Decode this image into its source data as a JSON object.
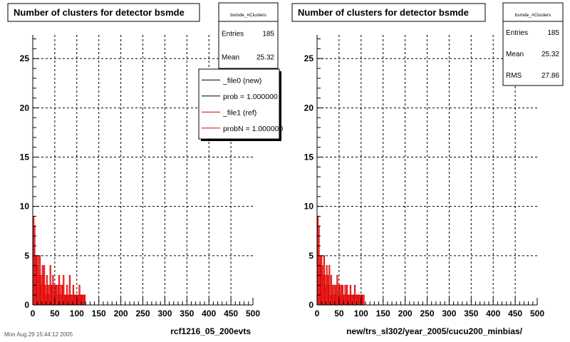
{
  "chart_data": [
    {
      "type": "bar",
      "title": "Number of clusters for detector bsmde",
      "xlabel": "rcf1216_05_200evts",
      "ylabel": "",
      "xlim": [
        0,
        500
      ],
      "ylim": [
        0,
        27.4
      ],
      "xticks": [
        "0",
        "50",
        "100",
        "150",
        "200",
        "250",
        "300",
        "350",
        "400",
        "450",
        "500"
      ],
      "yticks": [
        "0",
        "5",
        "10",
        "15",
        "20",
        "25"
      ],
      "grid": true,
      "stats": {
        "name": "bsmde_#Clusters",
        "rows": [
          {
            "label": "Entries",
            "value": "185"
          },
          {
            "label": "Mean",
            "value": "25.32"
          }
        ]
      },
      "legend": {
        "position": "top-right",
        "entries": [
          {
            "label": "_file0 (new)",
            "color": "#000000"
          },
          {
            "label": "prob = 1.000000",
            "color": "#000000"
          },
          {
            "label": "_file1 (ref)",
            "color": "#e00000"
          },
          {
            "label": "probN = 1.000000",
            "color": "#e00000"
          }
        ]
      },
      "series": [
        {
          "color": "#e00000",
          "bin_width": 2,
          "x": [
            2,
            4,
            6,
            8,
            10,
            12,
            14,
            16,
            18,
            20,
            22,
            24,
            26,
            28,
            30,
            32,
            34,
            36,
            38,
            40,
            42,
            44,
            46,
            48,
            50,
            52,
            54,
            56,
            58,
            60,
            62,
            64,
            66,
            68,
            70,
            72,
            74,
            76,
            78,
            80,
            82,
            84,
            86,
            88,
            90,
            92,
            94,
            96,
            98,
            100,
            102,
            104,
            106,
            108,
            110,
            112,
            114,
            116,
            118
          ],
          "values": [
            9,
            8,
            5,
            5,
            4,
            5,
            3,
            5,
            3,
            2,
            4,
            3,
            4,
            2,
            1,
            3,
            2,
            1,
            2,
            4,
            2,
            2,
            3,
            2,
            1,
            2,
            2,
            1,
            2,
            3,
            1,
            2,
            1,
            2,
            3,
            1,
            1,
            1,
            2,
            1,
            1,
            3,
            1,
            1,
            1,
            2,
            1,
            1,
            1,
            1,
            1,
            1,
            2,
            1,
            1,
            1,
            1,
            1,
            1
          ]
        }
      ]
    },
    {
      "type": "bar",
      "title": "Number of clusters for detector bsmde",
      "xlabel": "new/trs_sl302/year_2005/cucu200_minbias/",
      "ylabel": "",
      "xlim": [
        0,
        500
      ],
      "ylim": [
        0,
        27.4
      ],
      "xticks": [
        "0",
        "50",
        "100",
        "150",
        "200",
        "250",
        "300",
        "350",
        "400",
        "450",
        "500"
      ],
      "yticks": [
        "0",
        "5",
        "10",
        "15",
        "20",
        "25"
      ],
      "grid": true,
      "stats": {
        "name": "bsmde_#Clusters",
        "rows": [
          {
            "label": "Entries",
            "value": "185"
          },
          {
            "label": "Mean",
            "value": "25.32"
          },
          {
            "label": "RMS",
            "value": "27.86"
          }
        ]
      },
      "series": [
        {
          "color": "#e00000",
          "bin_width": 2,
          "x": [
            2,
            4,
            6,
            8,
            10,
            12,
            14,
            16,
            18,
            20,
            22,
            24,
            26,
            28,
            30,
            32,
            34,
            36,
            38,
            40,
            42,
            44,
            46,
            48,
            50,
            52,
            54,
            56,
            58,
            60,
            62,
            64,
            66,
            68,
            70,
            72,
            74,
            76,
            78,
            80,
            82,
            84,
            86,
            88,
            90,
            92,
            94,
            96,
            98,
            100,
            102,
            104,
            106
          ],
          "values": [
            9,
            8,
            5,
            4,
            5,
            4,
            3,
            5,
            3,
            2,
            4,
            3,
            2,
            4,
            1,
            3,
            2,
            1,
            2,
            2,
            1,
            2,
            3,
            1,
            2,
            2,
            1,
            2,
            2,
            1,
            1,
            2,
            1,
            2,
            1,
            1,
            1,
            2,
            1,
            1,
            1,
            1,
            2,
            1,
            1,
            1,
            1,
            1,
            1,
            1,
            1,
            1,
            1
          ]
        }
      ]
    }
  ],
  "footer_text": "Mon Aug 29 15:44:12 2005"
}
